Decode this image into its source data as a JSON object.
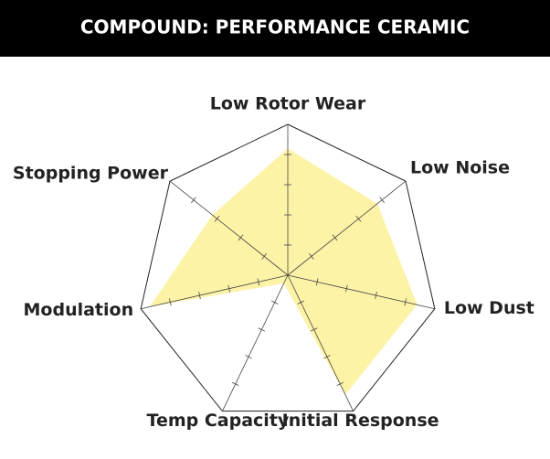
{
  "chart_data": {
    "type": "radar",
    "title": "COMPOUND: PERFORMANCE CERAMIC",
    "categories": [
      "Low Rotor Wear",
      "Low Noise",
      "Low Dust",
      "Initial Response",
      "Temp Capacity",
      "Modulation",
      "Stopping Power"
    ],
    "values": [
      4.2,
      3.8,
      4.4,
      4.4,
      0.3,
      4.7,
      3.2
    ],
    "color": "#fdf3a6",
    "rlim": [
      0,
      5
    ],
    "rticks": [
      1,
      2,
      3,
      4
    ]
  }
}
